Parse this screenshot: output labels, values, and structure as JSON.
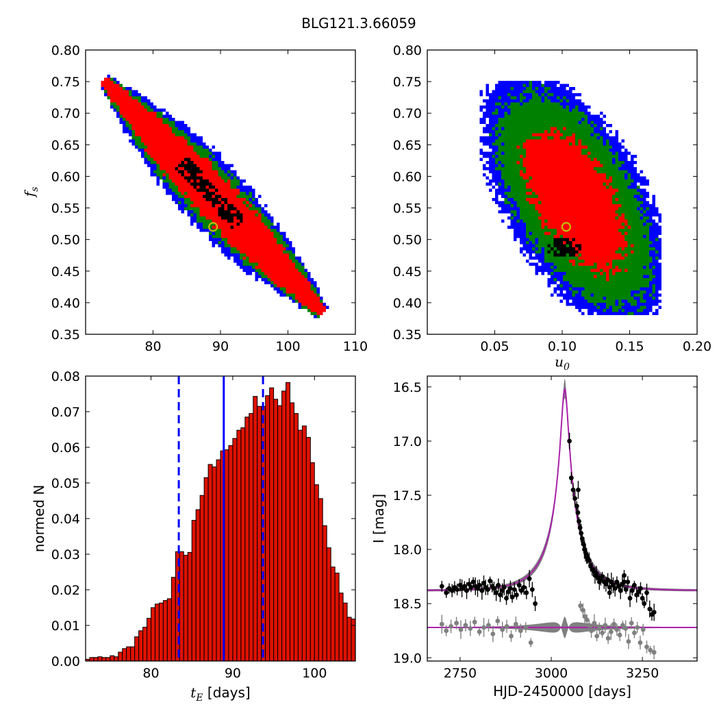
{
  "figure": {
    "title": "BLG121.3.66059"
  },
  "colors": {
    "conf_1sigma": "#000000",
    "conf_2sigma": "#ff0000",
    "conf_3sigma": "#008000",
    "conf_4sigma": "#0000ff",
    "best_fit_marker": "#bfbf00",
    "histogram_bar": "#dd1100",
    "median_line": "#0000ff",
    "model_line": "#aa22aa",
    "data_points": "#000000",
    "residuals_and_uncertainty": "#808080"
  },
  "chart_data": [
    {
      "id": "tE-fs",
      "type": "heatmap",
      "xlabel": "",
      "ylabel": "f_s",
      "xlim": [
        70,
        110
      ],
      "ylim": [
        0.35,
        0.8
      ],
      "xticks": [
        "80",
        "90",
        "100",
        "110"
      ],
      "yticks": [
        "0.35",
        "0.40",
        "0.45",
        "0.50",
        "0.55",
        "0.60",
        "0.65",
        "0.70",
        "0.75",
        "0.80"
      ],
      "best_fit": {
        "x": 88.9,
        "y": 0.52
      },
      "region": {
        "x_start": 72.5,
        "y_start": 0.755,
        "x_end": 105,
        "y_end": 0.385,
        "slope_ratio": -0.0114
      }
    },
    {
      "id": "u0-fs",
      "type": "heatmap",
      "xlabel": "u_0",
      "ylabel": "",
      "xlim": [
        0.0,
        0.2
      ],
      "ylim": [
        0.35,
        0.8
      ],
      "xticks": [
        "0.05",
        "0.10",
        "0.15",
        "0.20"
      ],
      "yticks": [
        "0.35",
        "0.40",
        "0.45",
        "0.50",
        "0.55",
        "0.60",
        "0.65",
        "0.70",
        "0.75",
        "0.80"
      ],
      "best_fit": {
        "x": 0.103,
        "y": 0.52
      },
      "region": {
        "x_center": 0.105,
        "y_center": 0.56,
        "x_range": [
          0.037,
          0.172
        ],
        "y_range": [
          0.385,
          0.755
        ]
      }
    },
    {
      "id": "tE-hist",
      "type": "bar",
      "xlabel": "t_E [days]",
      "ylabel": "normed N",
      "xlim": [
        72,
        105
      ],
      "ylim": [
        0,
        0.08
      ],
      "xticks": [
        "80",
        "90",
        "100"
      ],
      "yticks": [
        "0.00",
        "0.01",
        "0.02",
        "0.03",
        "0.04",
        "0.05",
        "0.06",
        "0.07",
        "0.08"
      ],
      "bin_start": 72,
      "bin_width": 0.5,
      "values": [
        0.0005,
        0.001,
        0.001,
        0.0012,
        0.001,
        0.001,
        0.0015,
        0.0012,
        0.0025,
        0.0035,
        0.004,
        0.004,
        0.0068,
        0.0085,
        0.0095,
        0.012,
        0.015,
        0.016,
        0.0163,
        0.017,
        0.0175,
        0.0235,
        0.0307,
        0.0307,
        0.0297,
        0.0305,
        0.0395,
        0.0425,
        0.0465,
        0.0515,
        0.0552,
        0.0545,
        0.0565,
        0.059,
        0.0593,
        0.0605,
        0.0625,
        0.0648,
        0.0655,
        0.0685,
        0.0695,
        0.0743,
        0.0715,
        0.0715,
        0.0745,
        0.0767,
        0.0735,
        0.0717,
        0.0758,
        0.0782,
        0.0725,
        0.0695,
        0.0648,
        0.066,
        0.0628,
        0.0557,
        0.0495,
        0.0456,
        0.038,
        0.0318,
        0.0264,
        0.0247,
        0.0191,
        0.0163,
        0.0123,
        0.0118,
        0.01,
        0.0082,
        0.0075,
        0.0052,
        0.0045,
        0.0038,
        0.0035,
        0.0027,
        0.0025,
        0.0018,
        0.0015,
        0.0007,
        0.0005,
        0.0005,
        0.0005,
        0.0005,
        0.0005,
        0.0005,
        0.0005,
        0.0005
      ],
      "median": 88.9,
      "interval": [
        83.4,
        93.7
      ]
    },
    {
      "id": "light-curve",
      "type": "scatter",
      "xlabel": "HJD-2450000 [days]",
      "ylabel": "I [mag]",
      "xlim": [
        2660,
        3400
      ],
      "ylim": [
        19.03,
        16.4
      ],
      "y_inverted": true,
      "xticks": [
        "2750",
        "3000",
        "3250"
      ],
      "yticks": [
        "16.5",
        "17.0",
        "17.5",
        "18.0",
        "18.5",
        "19.0"
      ],
      "model": {
        "t0": 3037,
        "tE": 88.9,
        "u0": 0.103,
        "fs": 0.52,
        "I_base": 18.38
      },
      "residual_baseline": 18.72,
      "series": [
        {
          "kind": "data",
          "x": [
            2700,
            2712,
            2720,
            2728,
            2735,
            2742,
            2750,
            2755,
            2762,
            2768,
            2775,
            2780,
            2786,
            2792,
            2798,
            2803,
            2810,
            2815,
            2820,
            2826,
            2832,
            2838,
            2843,
            2849,
            2855,
            2860,
            2866,
            2871,
            2877,
            2882,
            2888,
            2893,
            2899,
            2905,
            2912,
            2918,
            2925,
            2932,
            2940,
            2948,
            2956,
            3050,
            3055,
            3060,
            3065,
            3070,
            3073,
            3076,
            3079,
            3082,
            3085,
            3088,
            3091,
            3094,
            3097,
            3100,
            3104,
            3108,
            3112,
            3116,
            3120,
            3124,
            3128,
            3132,
            3136,
            3140,
            3145,
            3150,
            3155,
            3160,
            3165,
            3170,
            3175,
            3180,
            3185,
            3190,
            3195,
            3200,
            3205,
            3210,
            3216,
            3222,
            3228,
            3234,
            3240,
            3245,
            3250,
            3255,
            3262,
            3270,
            3276,
            3282,
            3074,
            3160,
            3200
          ],
          "y": [
            18.34,
            18.4,
            18.36,
            18.38,
            18.35,
            18.37,
            18.33,
            18.36,
            18.34,
            18.38,
            18.32,
            18.35,
            18.3,
            18.34,
            18.36,
            18.33,
            18.38,
            18.31,
            18.35,
            18.37,
            18.29,
            18.34,
            18.36,
            18.4,
            18.33,
            18.42,
            18.38,
            18.35,
            18.45,
            18.39,
            18.36,
            18.44,
            18.37,
            18.42,
            18.33,
            18.38,
            18.35,
            18.4,
            18.27,
            18.37,
            18.5,
            17.0,
            17.34,
            17.45,
            17.53,
            17.6,
            17.66,
            17.74,
            17.8,
            17.85,
            17.9,
            17.95,
            18.0,
            18.03,
            18.06,
            18.08,
            18.1,
            18.15,
            18.18,
            18.2,
            18.24,
            18.22,
            18.26,
            18.3,
            18.28,
            18.25,
            18.3,
            18.32,
            18.28,
            18.35,
            18.3,
            18.33,
            18.36,
            18.3,
            18.34,
            18.38,
            18.32,
            18.24,
            18.37,
            18.3,
            18.45,
            18.38,
            18.33,
            18.42,
            18.39,
            18.36,
            18.45,
            18.5,
            18.4,
            18.55,
            18.6,
            18.58,
            17.45,
            18.4,
            18.3
          ],
          "color": "#000000"
        },
        {
          "kind": "residuals",
          "x": [
            2700,
            2712,
            2725,
            2740,
            2752,
            2765,
            2778,
            2790,
            2803,
            2815,
            2828,
            2840,
            2853,
            2866,
            2878,
            2890,
            2903,
            2916,
            2930,
            2944,
            3080,
            3087,
            3092,
            3098,
            3104,
            3110,
            3118,
            3125,
            3132,
            3140,
            3148,
            3156,
            3164,
            3172,
            3180,
            3188,
            3196,
            3204,
            3212,
            3220,
            3228,
            3236,
            3244,
            3252,
            3262,
            3272,
            3282
          ],
          "y": [
            18.69,
            18.75,
            18.71,
            18.68,
            18.74,
            18.7,
            18.73,
            18.67,
            18.76,
            18.72,
            18.7,
            18.78,
            18.66,
            18.74,
            18.71,
            18.8,
            18.69,
            18.75,
            18.72,
            18.86,
            18.52,
            18.56,
            18.62,
            18.65,
            18.7,
            18.75,
            18.68,
            18.8,
            18.73,
            18.77,
            18.7,
            18.82,
            18.76,
            18.69,
            18.74,
            18.79,
            18.7,
            18.73,
            18.85,
            18.68,
            18.77,
            18.72,
            18.86,
            18.74,
            18.9,
            18.93,
            18.95
          ],
          "color": "#808080"
        }
      ]
    }
  ]
}
